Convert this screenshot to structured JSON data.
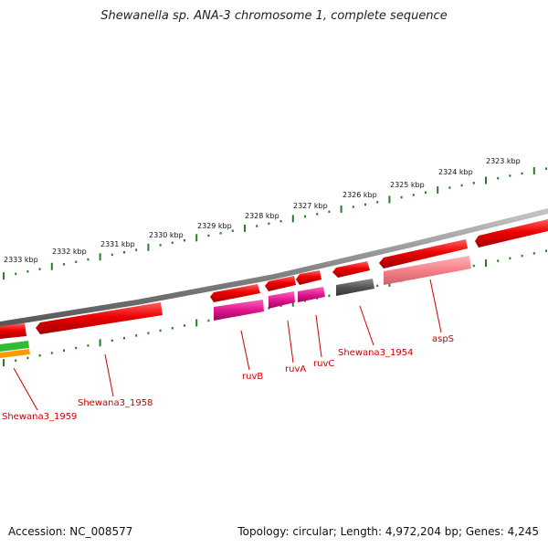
{
  "title": "Shewanella sp. ANA-3 chromosome 1, complete sequence",
  "footer": {
    "accession": "Accession: NC_008577",
    "summary": "Topology: circular; Length: 4,972,204 bp; Genes: 4,245"
  },
  "ticks": [
    "2323 kbp",
    "2324 kbp",
    "2325 kbp",
    "2326 kbp",
    "2327 kbp",
    "2328 kbp",
    "2329 kbp",
    "2330 kbp",
    "2331 kbp",
    "2332 kbp",
    "2333 kbp"
  ],
  "gene_labels": [
    "aspS",
    "Shewana3_1954",
    "ruvC",
    "ruvA",
    "ruvB",
    "Shewana3_1958",
    "Shewana3_1959"
  ],
  "colors": {
    "gene_red": "#ee0000",
    "gene_pink": "#ff80a0",
    "gene_magenta": "#e01890",
    "gene_gray": "#555555",
    "gene_green": "#33bb33",
    "gene_orange": "#ff9900",
    "backbone": "#888888",
    "scale": "#2a7a2a",
    "label": "#cc0000"
  }
}
